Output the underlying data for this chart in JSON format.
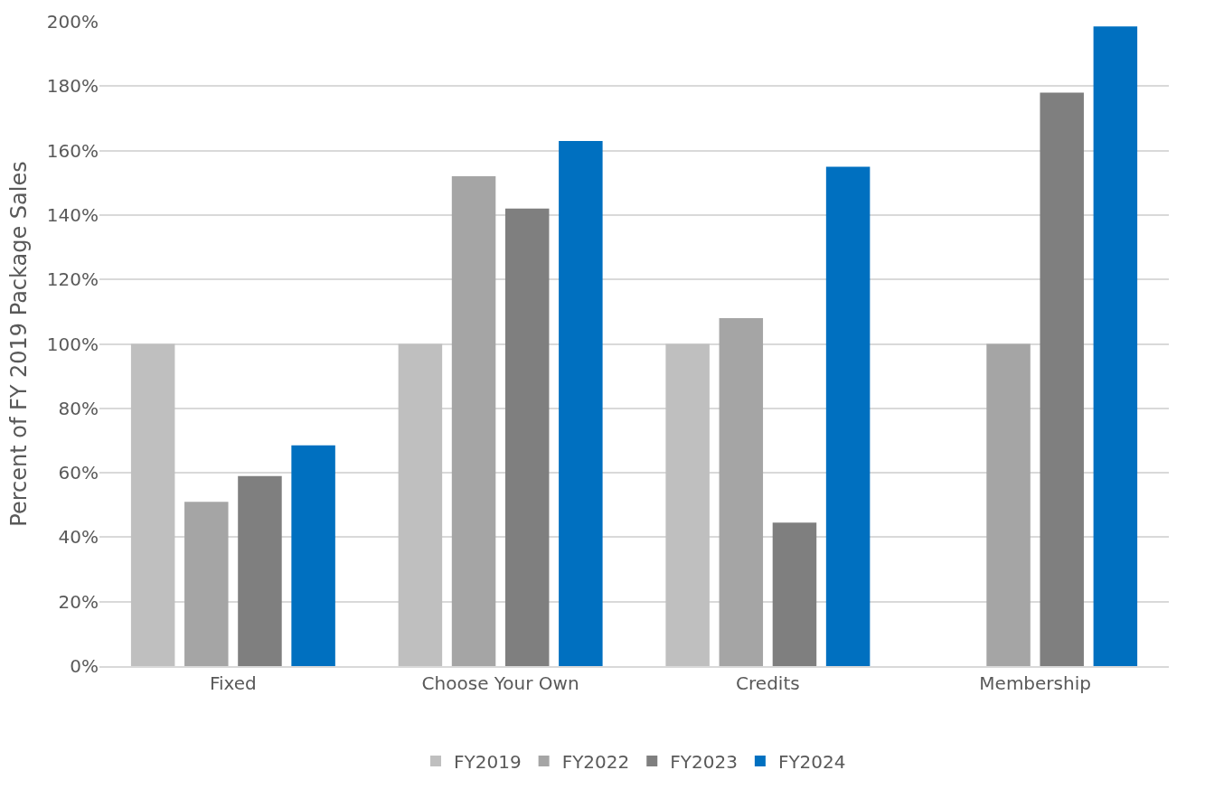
{
  "chart_data": {
    "type": "bar",
    "ylabel": "Percent of FY 2019 Package Sales",
    "categories": [
      "Fixed",
      "Choose Your Own",
      "Credits",
      "Membership"
    ],
    "series": [
      {
        "name": "FY2019",
        "color": "#bfbfbf",
        "values": [
          100,
          100,
          100,
          null
        ]
      },
      {
        "name": "FY2022",
        "color": "#a5a5a5",
        "values": [
          51,
          152,
          108,
          100
        ]
      },
      {
        "name": "FY2023",
        "color": "#7f7f7f",
        "values": [
          59,
          142,
          44.5,
          178
        ]
      },
      {
        "name": "FY2024",
        "color": "#0070c0",
        "values": [
          68.5,
          163,
          155,
          198.5
        ]
      }
    ],
    "ylim": [
      0,
      200
    ],
    "yticks": [
      {
        "value": 0,
        "label": "0%"
      },
      {
        "value": 20,
        "label": "20%"
      },
      {
        "value": 40,
        "label": "40%"
      },
      {
        "value": 60,
        "label": "60%"
      },
      {
        "value": 80,
        "label": "80%"
      },
      {
        "value": 100,
        "label": "100%"
      },
      {
        "value": 120,
        "label": "120%"
      },
      {
        "value": 140,
        "label": "140%"
      },
      {
        "value": 160,
        "label": "160%"
      },
      {
        "value": 180,
        "label": "180%"
      },
      {
        "value": 200,
        "label": "200%"
      }
    ],
    "grid": "y",
    "legend": "bottom"
  }
}
